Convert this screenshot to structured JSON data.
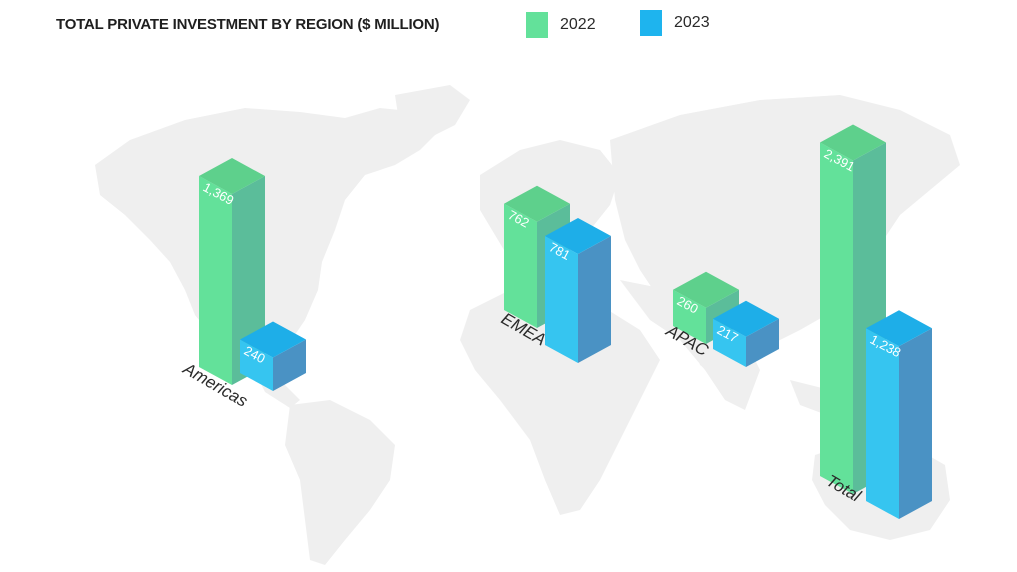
{
  "chart_data": {
    "type": "bar",
    "title": "TOTAL PRIVATE INVESTMENT BY REGION ($ MILLION)",
    "categories": [
      "Americas",
      "EMEA",
      "APAC",
      "Total"
    ],
    "series": [
      {
        "name": "2022",
        "values": [
          1369,
          762,
          260,
          2391
        ],
        "labels": [
          "1,369",
          "762",
          "260",
          "2,391"
        ]
      },
      {
        "name": "2023",
        "values": [
          240,
          781,
          217,
          1238
        ],
        "labels": [
          "240",
          "781",
          "217",
          "1,238"
        ]
      }
    ],
    "legend_position": "top",
    "background": "world-map"
  },
  "colors": {
    "series_2022_front": "#63e19a",
    "series_2022_top": "#5ed08c",
    "series_2022_side": "#5bbd9a",
    "series_2023_front": "#36c5f0",
    "series_2023_top": "#1eaee8",
    "series_2023_side": "#4a92c4",
    "map": "#eeeeee"
  }
}
